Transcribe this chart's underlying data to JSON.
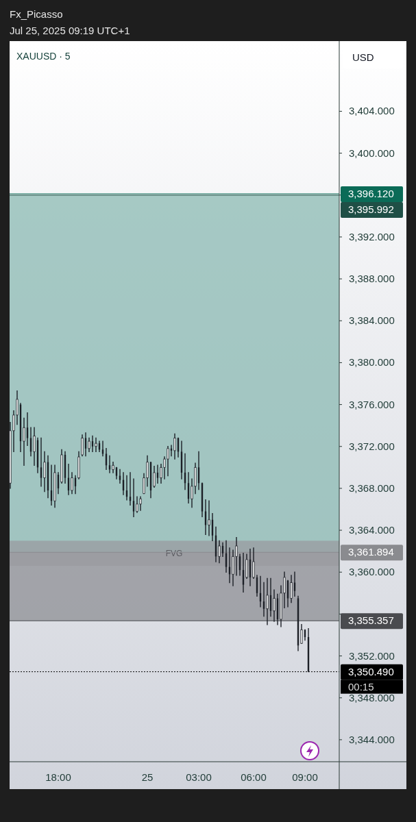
{
  "chart_data": {
    "type": "candlestick",
    "title": "XAUUSD · 5",
    "subtitle": "Fx_Picasso",
    "ylabel": "USD",
    "annotations": [
      "Jul 25, 2025 09:19 UTC+1",
      "00:15"
    ],
    "color": "#1c1f26",
    "categories": [
      null,
      null,
      null,
      null,
      null,
      null,
      null,
      null,
      null,
      null,
      null,
      null,
      null,
      null,
      "18:00",
      null,
      null,
      null,
      null,
      null,
      null,
      null,
      null,
      null,
      null,
      null,
      null,
      null,
      null,
      null,
      null,
      null,
      null,
      null,
      null,
      null,
      null,
      null,
      null,
      null,
      "25",
      null,
      null,
      null,
      null,
      null,
      null,
      null,
      null,
      null,
      null,
      null,
      null,
      null,
      null,
      "03:00",
      null,
      null,
      null,
      null,
      null,
      null,
      null,
      null,
      null,
      null,
      null,
      null,
      null,
      null,
      null,
      "06:00",
      null,
      null,
      null,
      null,
      null,
      null,
      null,
      null,
      null,
      null,
      null,
      null,
      null,
      null,
      "09:00",
      null,
      null,
      null,
      null,
      null,
      null,
      null,
      null,
      null,
      null
    ],
    "ohlc": [
      [
        3368.5,
        3374.3,
        3368.0,
        3373.5
      ],
      [
        3373.5,
        3375.4,
        3371.5,
        3375.0
      ],
      [
        3375.0,
        3377.3,
        3374.1,
        3376.5
      ],
      [
        3376.0,
        3376.1,
        3371.5,
        3372.5
      ],
      [
        3372.5,
        3374.7,
        3370.2,
        3373.8
      ],
      [
        3373.8,
        3375.2,
        3372.1,
        3372.8
      ],
      [
        3372.8,
        3373.8,
        3371.1,
        3371.5
      ],
      [
        3371.5,
        3373.8,
        3370.2,
        3373.0
      ],
      [
        3372.6,
        3372.8,
        3369.5,
        3370.0
      ],
      [
        3370.0,
        3372.8,
        3368.2,
        3369.0
      ],
      [
        3369.0,
        3371.5,
        3367.7,
        3370.5
      ],
      [
        3370.5,
        3371.1,
        3367.1,
        3367.8
      ],
      [
        3367.8,
        3370.2,
        3366.4,
        3366.8
      ],
      [
        3366.8,
        3370.2,
        3366.2,
        3369.5
      ],
      [
        3369.3,
        3369.5,
        3367.5,
        3368.0
      ],
      [
        3368.6,
        3371.7,
        3368.5,
        3371.2
      ],
      [
        3371.2,
        3371.5,
        3368.5,
        3369.0
      ],
      [
        3369.0,
        3370.3,
        3367.4,
        3367.8
      ],
      [
        3367.8,
        3369.5,
        3367.5,
        3369.0
      ],
      [
        3369.0,
        3369.2,
        3367.5,
        3368.2
      ],
      [
        3369.0,
        3371.5,
        3368.9,
        3371.0
      ],
      [
        3371.2,
        3373.1,
        3371.1,
        3372.8
      ],
      [
        3372.8,
        3373.3,
        3371.1,
        3371.8
      ],
      [
        3371.8,
        3372.8,
        3371.5,
        3372.5
      ],
      [
        3372.5,
        3373.0,
        3371.5,
        3372.0
      ],
      [
        3372.0,
        3372.8,
        3371.5,
        3372.3
      ],
      [
        3372.3,
        3372.5,
        3371.5,
        3371.7
      ],
      [
        3371.7,
        3372.5,
        3371.1,
        3371.3
      ],
      [
        3371.3,
        3371.8,
        3369.8,
        3370.2
      ],
      [
        3370.2,
        3371.1,
        3369.5,
        3369.8
      ],
      [
        3369.8,
        3370.5,
        3369.5,
        3370.2
      ],
      [
        3370.0,
        3370.0,
        3368.9,
        3369.2
      ],
      [
        3369.2,
        3369.8,
        3368.5,
        3368.8
      ],
      [
        3368.8,
        3369.5,
        3367.4,
        3367.8
      ],
      [
        3367.8,
        3369.2,
        3366.9,
        3367.2
      ],
      [
        3367.2,
        3369.5,
        3366.4,
        3366.8
      ],
      [
        3366.8,
        3368.9,
        3365.3,
        3365.8
      ],
      [
        3365.8,
        3367.2,
        3365.7,
        3366.5
      ],
      [
        3366.5,
        3367.2,
        3365.9,
        3367.0
      ],
      [
        3367.5,
        3369.4,
        3367.5,
        3369.0
      ],
      [
        3369.0,
        3371.1,
        3368.2,
        3370.5
      ],
      [
        3370.5,
        3370.5,
        3367.1,
        3367.8
      ],
      [
        3368.2,
        3370.1,
        3368.1,
        3369.5
      ],
      [
        3369.5,
        3370.2,
        3368.5,
        3369.0
      ],
      [
        3369.0,
        3370.3,
        3368.5,
        3370.0
      ],
      [
        3370.0,
        3371.0,
        3368.9,
        3370.8
      ],
      [
        3370.8,
        3372.0,
        3369.2,
        3371.8
      ],
      [
        3371.8,
        3372.1,
        3371.1,
        3371.6
      ],
      [
        3371.6,
        3373.2,
        3370.8,
        3372.8
      ],
      [
        3372.8,
        3372.8,
        3371.0,
        3371.5
      ],
      [
        3371.5,
        3372.5,
        3368.9,
        3369.5
      ],
      [
        3369.5,
        3371.3,
        3367.9,
        3368.5
      ],
      [
        3368.5,
        3369.5,
        3366.6,
        3367.0
      ],
      [
        3367.0,
        3368.9,
        3366.2,
        3368.2
      ],
      [
        3368.2,
        3370.4,
        3367.5,
        3370.0
      ],
      [
        3370.0,
        3371.5,
        3367.9,
        3368.5
      ],
      [
        3368.5,
        3368.5,
        3365.3,
        3365.8
      ],
      [
        3365.8,
        3366.9,
        3363.6,
        3364.5
      ],
      [
        3364.5,
        3366.8,
        3363.5,
        3365.0
      ],
      [
        3365.0,
        3365.6,
        3363.0,
        3363.5
      ],
      [
        3363.5,
        3364.3,
        3361.0,
        3361.5
      ],
      [
        3361.5,
        3363.0,
        3360.9,
        3362.5
      ],
      [
        3362.5,
        3362.8,
        3361.5,
        3361.8
      ],
      [
        3361.8,
        3363.0,
        3360.0,
        3360.5
      ],
      [
        3360.5,
        3362.3,
        3359.0,
        3359.8
      ],
      [
        3359.8,
        3362.1,
        3358.7,
        3361.5
      ],
      [
        3361.5,
        3363.3,
        3359.7,
        3362.5
      ],
      [
        3361.5,
        3361.7,
        3359.7,
        3360.2
      ],
      [
        3360.2,
        3361.8,
        3358.1,
        3358.8
      ],
      [
        3359.5,
        3361.7,
        3359.4,
        3361.2
      ],
      [
        3361.2,
        3362.2,
        3358.7,
        3359.5
      ],
      [
        3359.5,
        3362.3,
        3359.4,
        3361.0
      ],
      [
        3359.5,
        3359.7,
        3357.7,
        3358.0
      ],
      [
        3358.0,
        3359.6,
        3356.7,
        3357.2
      ],
      [
        3357.2,
        3359.0,
        3355.8,
        3356.5
      ],
      [
        3356.5,
        3359.4,
        3355.0,
        3357.8
      ],
      [
        3357.8,
        3359.4,
        3355.8,
        3356.3
      ],
      [
        3356.3,
        3358.3,
        3355.3,
        3357.5
      ],
      [
        3357.5,
        3357.9,
        3355.0,
        3355.5
      ],
      [
        3355.5,
        3358.7,
        3354.8,
        3358.0
      ],
      [
        3358.0,
        3360.0,
        3356.6,
        3359.5
      ],
      [
        3359.2,
        3359.2,
        3356.7,
        3357.5
      ],
      [
        3357.5,
        3359.7,
        3357.1,
        3359.0
      ],
      [
        3359.0,
        3360.0,
        3357.7,
        3358.2
      ],
      [
        3357.5,
        3357.7,
        3352.5,
        3353.0
      ],
      [
        3353.2,
        3355.0,
        3353.2,
        3354.5
      ],
      [
        3354.5,
        3354.5,
        3353.5,
        3353.8
      ],
      [
        3353.8,
        3354.6,
        3350.49,
        3350.49
      ],
      null,
      null,
      null,
      null,
      null,
      null,
      null,
      null,
      null
    ],
    "ylim": [
      3341.9,
      3410.7
    ],
    "yticks": [
      {
        "value": 3344,
        "label": "3,344.000"
      },
      {
        "value": 3348,
        "label": "3,348.000"
      },
      {
        "value": 3352,
        "label": "3,352.000"
      },
      {
        "value": 3356,
        "label": null
      },
      {
        "value": 3360,
        "label": "3,360.000"
      },
      {
        "value": 3364,
        "label": "3,364.000"
      },
      {
        "value": 3368,
        "label": "3,368.000"
      },
      {
        "value": 3372,
        "label": "3,372.000"
      },
      {
        "value": 3376,
        "label": "3,376.000"
      },
      {
        "value": 3380,
        "label": "3,380.000"
      },
      {
        "value": 3384,
        "label": "3,384.000"
      },
      {
        "value": 3388,
        "label": "3,388.000"
      },
      {
        "value": 3392,
        "label": "3,392.000"
      },
      {
        "value": 3396,
        "label": null
      },
      {
        "value": 3400,
        "label": "3,400.000"
      },
      {
        "value": 3404,
        "label": "3,404.000"
      }
    ],
    "bands": [
      {
        "axis": "y",
        "from": 3361.894,
        "to": 3395.992,
        "color": "#8bbab3"
      },
      {
        "axis": "y",
        "from": 3355.357,
        "to": 3361.894,
        "color": "#8e8f94"
      },
      {
        "axis": "y",
        "from": 3360.6,
        "to": 3363.0,
        "label": "FVG",
        "color": "#9a9ba0"
      }
    ],
    "ref_lines": [
      {
        "axis": "y",
        "value": 3396.12,
        "label": "3,396.120",
        "color": "#0b6b57"
      },
      {
        "axis": "y",
        "value": 3395.992,
        "label": "3,395.992",
        "color": "#1f4f46"
      },
      {
        "axis": "y",
        "value": 3361.894,
        "label": "3,361.894",
        "color": "#8a8b8f"
      },
      {
        "axis": "y",
        "value": 3355.357,
        "label": "3,355.357",
        "color": "#4a4b4f"
      },
      {
        "axis": "y",
        "value": 3350.49,
        "label": "3,350.490",
        "color": "#000000",
        "line_style": "dotted"
      }
    ]
  }
}
